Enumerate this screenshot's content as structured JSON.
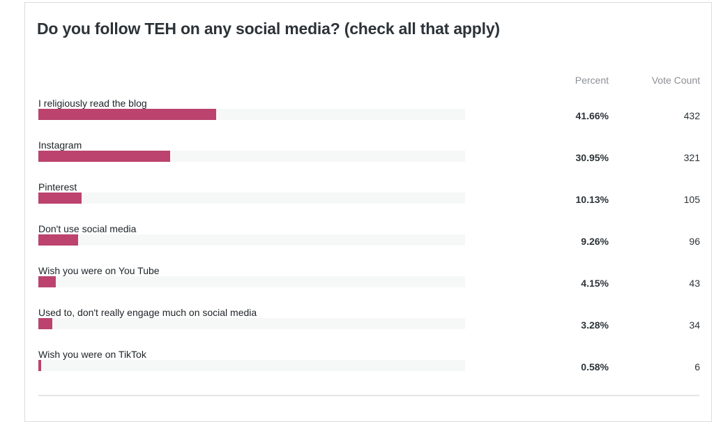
{
  "title": "Do you follow TEH on any social media? (check all that apply)",
  "headers": {
    "percent": "Percent",
    "vote_count": "Vote Count"
  },
  "colors": {
    "bar": "#bb436d",
    "track": "#f6f7f7"
  },
  "chart_data": {
    "type": "bar",
    "orientation": "horizontal",
    "title": "Do you follow TEH on any social media? (check all that apply)",
    "xlim": [
      0,
      100
    ],
    "grid": false,
    "categories": [
      "I religiously read the blog",
      "Instagram",
      "Pinterest",
      "Don't use social media",
      "Wish you were on You Tube",
      "Used to, don't really engage much on social media",
      "Wish you were on TikTok"
    ],
    "values": [
      41.66,
      30.95,
      10.13,
      9.26,
      4.15,
      3.28,
      0.58
    ],
    "percent_labels": [
      "41.66%",
      "30.95%",
      "10.13%",
      "9.26%",
      "4.15%",
      "3.28%",
      "0.58%"
    ],
    "vote_counts": [
      "432",
      "321",
      "105",
      "96",
      "43",
      "34",
      "6"
    ]
  }
}
